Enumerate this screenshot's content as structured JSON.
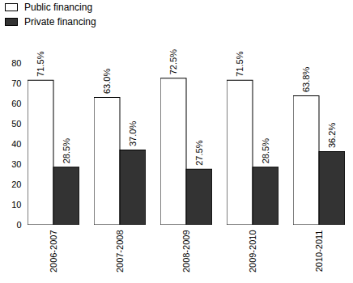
{
  "chart_data": {
    "type": "bar",
    "categories": [
      "2006-2007",
      "2007-2008",
      "2008-2009",
      "2009-2010",
      "2010-2011"
    ],
    "series": [
      {
        "name": "Public financing",
        "color": "#ffffff",
        "values": [
          71.5,
          63.0,
          72.5,
          71.5,
          63.8
        ],
        "value_labels": [
          "71.5%",
          "63.0%",
          "72.5%",
          "71.5%",
          "63.8%"
        ]
      },
      {
        "name": "Private financing",
        "color": "#333333",
        "values": [
          28.5,
          37.0,
          27.5,
          28.5,
          36.2
        ],
        "value_labels": [
          "28.5%",
          "37.0%",
          "27.5%",
          "28.5%",
          "36.2%"
        ]
      }
    ],
    "ylim": [
      0,
      80
    ],
    "yticks": [
      0,
      10,
      20,
      30,
      40,
      50,
      60,
      70,
      80
    ],
    "grid": false,
    "legend": "top-left",
    "data_labels": true
  }
}
